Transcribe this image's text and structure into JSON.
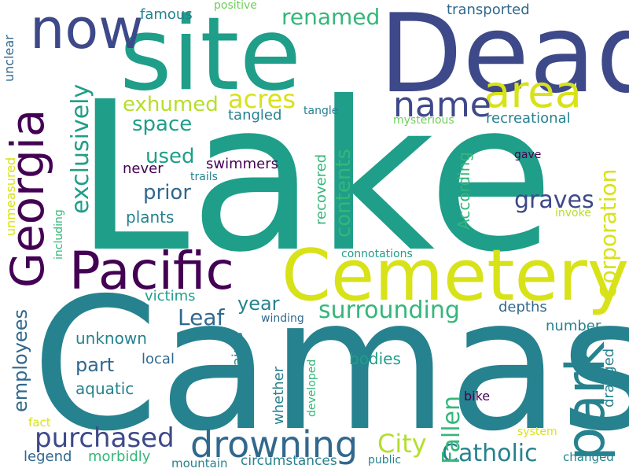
{
  "palette": {
    "dark_purple": "#440154",
    "indigo": "#3e4989",
    "slate_blue": "#31688e",
    "teal_blue": "#26828e",
    "teal": "#1f9e89",
    "green": "#35b779",
    "light_green": "#6ece58",
    "lime": "#b5de2b",
    "yellow": "#d8e219"
  },
  "words": {
    "lake": "Lake",
    "camas": "Camas",
    "site": "site",
    "dead": "Dead",
    "cemetery": "Cemetery",
    "pacific": "Pacific",
    "georgia": "Georgia",
    "now": "now",
    "area": "area",
    "park": "park",
    "name": "name",
    "drowning": "drowning",
    "surrounding": "surrounding",
    "purchased": "purchased",
    "catholic": "Catholic",
    "city": "City",
    "fallen": "Fallen",
    "corporation": "Corporation",
    "exclusively": "exclusively",
    "renamed": "renamed",
    "exhumed": "exhumed",
    "acres": "acres",
    "space": "space",
    "used": "used",
    "prior": "prior",
    "contents": "contents",
    "graves": "graves",
    "leaf": "Leaf",
    "year": "year",
    "part": "part",
    "employees": "employees",
    "unknown": "unknown",
    "according": "According",
    "plants": "plants",
    "famous": "famous",
    "transported": "transported",
    "recreational": "recreational",
    "tangled": "tangled",
    "recovered": "recovered",
    "never": "never",
    "swimmers": "swimmers",
    "victims": "victims",
    "depths": "depths",
    "number": "number",
    "bodies": "bodies",
    "local": "local",
    "aquatic": "aquatic",
    "legend": "legend",
    "morbidly": "morbidly",
    "unmeasured": "unmeasured",
    "unclear": "unclear",
    "including": "including",
    "positive": "positive",
    "tangle": "tangle",
    "mysterious": "mysterious",
    "trails": "trails",
    "gave": "gave",
    "invoke": "invoke",
    "connotations": "connotations",
    "winding": "winding",
    "claims": "claims",
    "whether": "whether",
    "developed": "developed",
    "dragged": "dragged",
    "bike": "bike",
    "system": "system",
    "changed": "changed",
    "public": "public",
    "circumstances": "circumstances",
    "mountain": "mountain",
    "fact": "fact"
  }
}
